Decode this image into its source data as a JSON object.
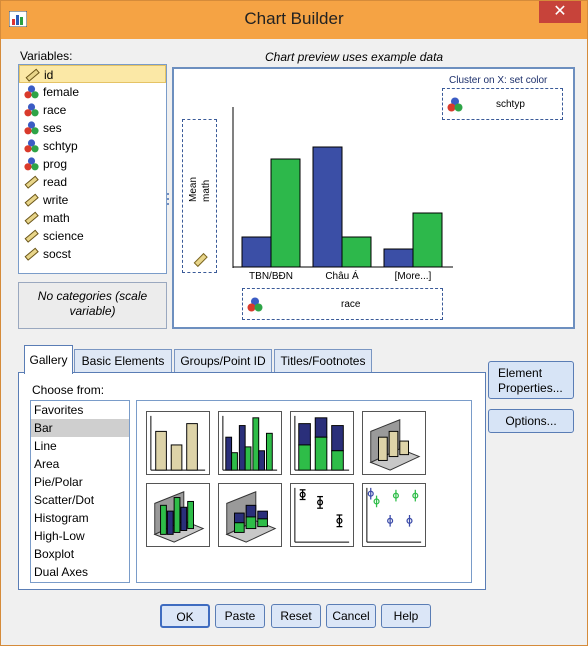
{
  "window": {
    "title": "Chart Builder"
  },
  "variables": {
    "label": "Variables:",
    "items": [
      {
        "name": "id",
        "icon": "scale-ruler-icon"
      },
      {
        "name": "female",
        "icon": "nominal-balls-icon"
      },
      {
        "name": "race",
        "icon": "nominal-balls-icon"
      },
      {
        "name": "ses",
        "icon": "nominal-balls-icon"
      },
      {
        "name": "schtyp",
        "icon": "nominal-balls-icon"
      },
      {
        "name": "prog",
        "icon": "nominal-balls-icon"
      },
      {
        "name": "read",
        "icon": "scale-ruler-icon"
      },
      {
        "name": "write",
        "icon": "scale-ruler-icon"
      },
      {
        "name": "math",
        "icon": "scale-ruler-icon"
      },
      {
        "name": "science",
        "icon": "scale-ruler-icon"
      },
      {
        "name": "socst",
        "icon": "scale-ruler-icon"
      }
    ],
    "selected_index": 0,
    "categories_note": "No categories (scale variable)"
  },
  "preview": {
    "note": "Chart preview uses example data",
    "cluster_label": "Cluster on X: set color",
    "cluster_var": "schtyp",
    "y_var_line1": "Mean",
    "y_var_line2": "math",
    "x_var": "race",
    "colors": {
      "series1": "#3b4fa6",
      "series2": "#2db84b"
    },
    "chart_data": {
      "type": "bar",
      "categories": [
        "TBN/BĐN",
        "Châu Á",
        "[More...]"
      ],
      "series": [
        {
          "values": [
            30,
            120,
            18
          ]
        },
        {
          "values": [
            108,
            30,
            54
          ]
        }
      ],
      "ylim": [
        0,
        130
      ]
    }
  },
  "tabs": [
    {
      "label": "Gallery"
    },
    {
      "label": "Basic Elements"
    },
    {
      "label": "Groups/Point ID"
    },
    {
      "label": "Titles/Footnotes"
    }
  ],
  "gallery": {
    "choose_label": "Choose from:",
    "types": [
      "Favorites",
      "Bar",
      "Line",
      "Area",
      "Pie/Polar",
      "Scatter/Dot",
      "Histogram",
      "High-Low",
      "Boxplot",
      "Dual Axes"
    ],
    "selected_index": 1,
    "thumbnails": [
      "simple-bar-thumbnail",
      "clustered-bar-thumbnail",
      "stacked-bar-thumbnail",
      "3d-bar-thumbnail",
      "3d-clustered-bar-thumbnail",
      "3d-stacked-bar-thumbnail",
      "error-bar-thumbnail",
      "clustered-error-bar-thumbnail"
    ]
  },
  "side_buttons": {
    "element_line1": "Element",
    "element_line2": "Properties...",
    "options": "Options..."
  },
  "buttons": {
    "ok": "OK",
    "paste": "Paste",
    "reset": "Reset",
    "cancel": "Cancel",
    "help": "Help"
  }
}
